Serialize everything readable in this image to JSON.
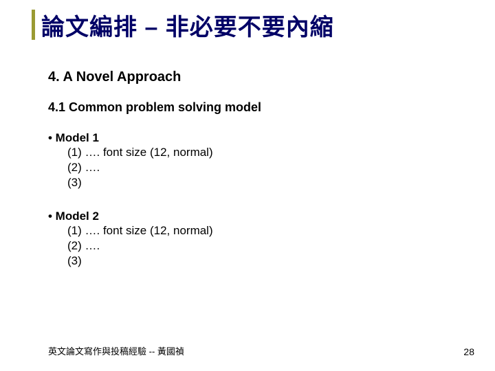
{
  "title": "論文編排 – 非必要不要內縮",
  "accent_color": "#9a9a33",
  "title_color": "#000066",
  "section": {
    "heading": "4. A Novel Approach",
    "subheading": "4.1 Common problem solving model",
    "bullets": [
      {
        "head_bold": "• Model 1",
        "lines": [
          "(1) …. font size (12, normal)",
          "(2) ….",
          "(3)"
        ]
      },
      {
        "head_bold": "• Model 2",
        "lines": [
          "(1) …. font size (12, normal)",
          "(2) ….",
          "(3)"
        ]
      }
    ]
  },
  "footer": "英文論文寫作與投稿經驗 -- 黃國禎",
  "page_number": "28"
}
